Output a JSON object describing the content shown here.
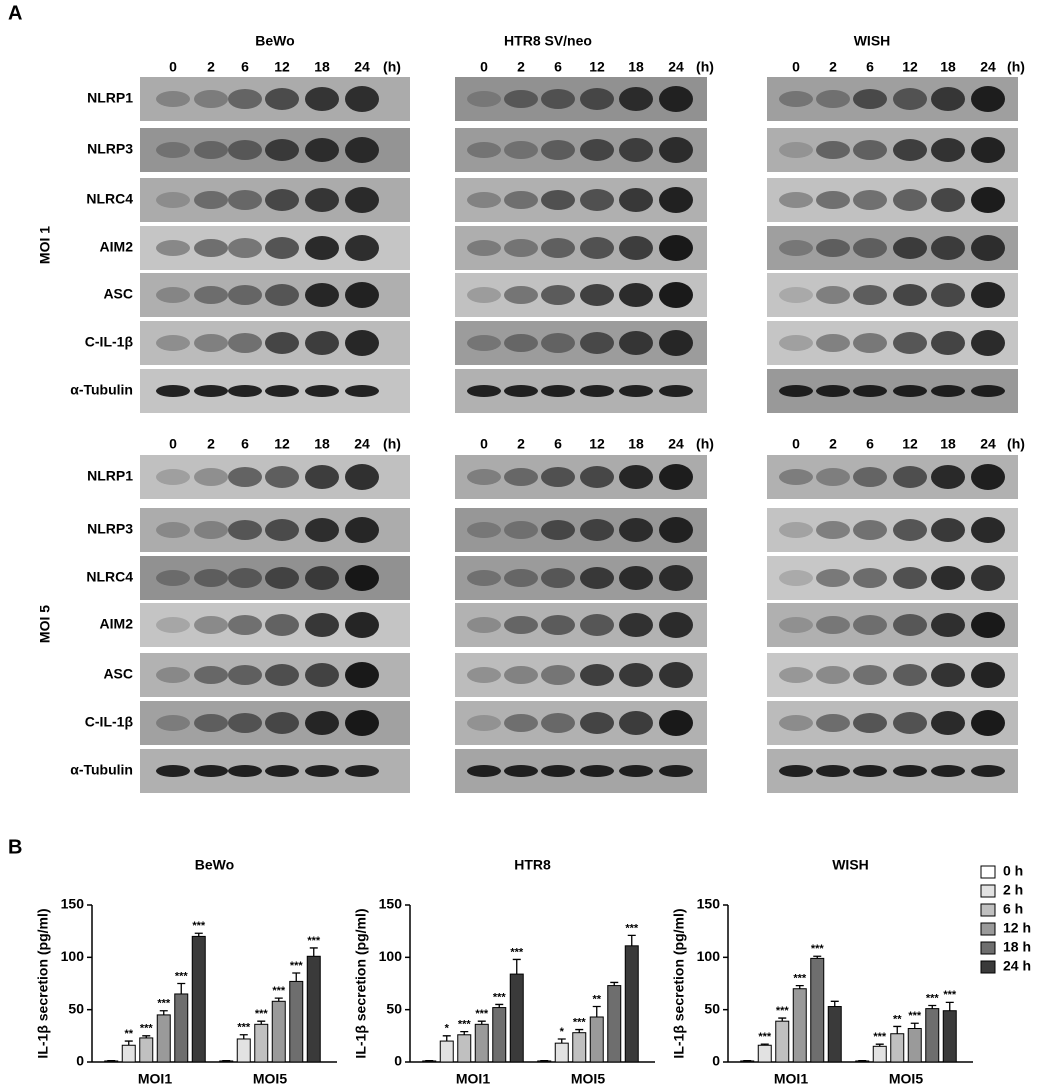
{
  "panel_a": {
    "label": "A",
    "cell_lines": [
      "BeWo",
      "HTR8 SV/neo",
      "WISH"
    ],
    "timepoints": [
      "0",
      "2",
      "6",
      "12",
      "18",
      "24"
    ],
    "unit": "(h)",
    "conditions": [
      "MOI 1",
      "MOI 5"
    ],
    "proteins": [
      "NLRP1",
      "NLRP3",
      "NLRC4",
      "AIM2",
      "ASC",
      "C-IL-1β",
      "α-Tubulin"
    ]
  },
  "panel_b": {
    "label": "B"
  },
  "chart_data": [
    {
      "type": "bar",
      "title": "BeWo",
      "y_label": "IL-1β secretion (pg/ml)",
      "categories": [
        "MOI1",
        "MOI5"
      ],
      "ylim": [
        0,
        150
      ],
      "yticks": [
        0,
        50,
        100,
        150
      ],
      "series": [
        {
          "name": "0 h",
          "color": "#ffffff",
          "values": [
            1,
            1
          ],
          "errors": [
            0.3,
            0.3
          ],
          "significance": [
            null,
            null
          ]
        },
        {
          "name": "2 h",
          "color": "#e2e2e2",
          "values": [
            16,
            22
          ],
          "errors": [
            4,
            4
          ],
          "significance": [
            "**",
            "***"
          ]
        },
        {
          "name": "6 h",
          "color": "#c0c0c0",
          "values": [
            23,
            36
          ],
          "errors": [
            2,
            3
          ],
          "significance": [
            "***",
            "***"
          ]
        },
        {
          "name": "12 h",
          "color": "#9a9a9a",
          "values": [
            45,
            58
          ],
          "errors": [
            4,
            3
          ],
          "significance": [
            "***",
            "***"
          ]
        },
        {
          "name": "18 h",
          "color": "#6e6e6e",
          "values": [
            65,
            77
          ],
          "errors": [
            10,
            8
          ],
          "significance": [
            "***",
            "***"
          ]
        },
        {
          "name": "24 h",
          "color": "#3a3a3a",
          "values": [
            120,
            101
          ],
          "errors": [
            3,
            8
          ],
          "significance": [
            "***",
            "***"
          ]
        }
      ]
    },
    {
      "type": "bar",
      "title": "HTR8",
      "y_label": "IL-1β secretion (pg/ml)",
      "categories": [
        "MOI1",
        "MOI5"
      ],
      "ylim": [
        0,
        150
      ],
      "yticks": [
        0,
        50,
        100,
        150
      ],
      "series": [
        {
          "name": "0 h",
          "color": "#ffffff",
          "values": [
            1,
            1
          ],
          "errors": [
            0.3,
            0.3
          ],
          "significance": [
            null,
            null
          ]
        },
        {
          "name": "2 h",
          "color": "#e2e2e2",
          "values": [
            20,
            18
          ],
          "errors": [
            5,
            4
          ],
          "significance": [
            "*",
            "*"
          ]
        },
        {
          "name": "6 h",
          "color": "#c0c0c0",
          "values": [
            26,
            28
          ],
          "errors": [
            3,
            3
          ],
          "significance": [
            "***",
            "***"
          ]
        },
        {
          "name": "12 h",
          "color": "#9a9a9a",
          "values": [
            36,
            43
          ],
          "errors": [
            3,
            10
          ],
          "significance": [
            "***",
            "**"
          ]
        },
        {
          "name": "18 h",
          "color": "#6e6e6e",
          "values": [
            52,
            73
          ],
          "errors": [
            3,
            3
          ],
          "significance": [
            "***",
            null
          ]
        },
        {
          "name": "24 h",
          "color": "#3a3a3a",
          "values": [
            84,
            111
          ],
          "errors": [
            14,
            10
          ],
          "significance": [
            "***",
            "***"
          ]
        }
      ]
    },
    {
      "type": "bar",
      "title": "WISH",
      "y_label": "IL-1β secretion (pg/ml)",
      "categories": [
        "MOI1",
        "MOI5"
      ],
      "ylim": [
        0,
        150
      ],
      "yticks": [
        0,
        50,
        100,
        150
      ],
      "series": [
        {
          "name": "0 h",
          "color": "#ffffff",
          "values": [
            1,
            1
          ],
          "errors": [
            0.3,
            0.3
          ],
          "significance": [
            null,
            null
          ]
        },
        {
          "name": "2 h",
          "color": "#e2e2e2",
          "values": [
            16,
            15
          ],
          "errors": [
            1,
            2
          ],
          "significance": [
            "***",
            "***"
          ]
        },
        {
          "name": "6 h",
          "color": "#c0c0c0",
          "values": [
            39,
            27
          ],
          "errors": [
            3,
            7
          ],
          "significance": [
            "***",
            "**"
          ]
        },
        {
          "name": "12 h",
          "color": "#9a9a9a",
          "values": [
            70,
            32
          ],
          "errors": [
            3,
            5
          ],
          "significance": [
            "***",
            "***"
          ]
        },
        {
          "name": "18 h",
          "color": "#6e6e6e",
          "values": [
            99,
            51
          ],
          "errors": [
            2,
            3
          ],
          "significance": [
            "***",
            "***"
          ]
        },
        {
          "name": "24 h",
          "color": "#3a3a3a",
          "values": [
            53,
            49
          ],
          "errors": [
            5,
            8
          ],
          "significance": [
            null,
            "***"
          ]
        }
      ]
    }
  ]
}
